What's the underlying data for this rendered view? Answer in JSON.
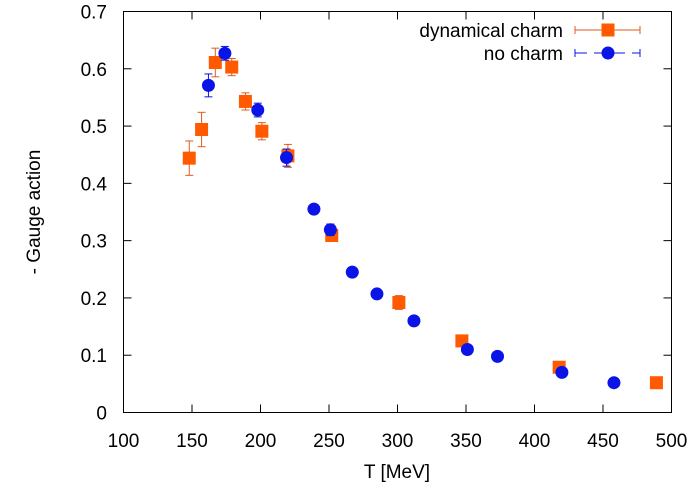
{
  "chart_data": {
    "type": "scatter",
    "xlabel": "T [MeV]",
    "ylabel": "- Gauge action",
    "xlim": [
      100,
      500
    ],
    "ylim": [
      0,
      0.7
    ],
    "xticks": [
      "100",
      "150",
      "200",
      "250",
      "300",
      "350",
      "400",
      "450",
      "500"
    ],
    "yticks": [
      "0",
      "0.1",
      "0.2",
      "0.3",
      "0.4",
      "0.5",
      "0.6",
      "0.7"
    ],
    "grid": false,
    "legend_position": "top-right",
    "series": [
      {
        "name": "dynamical charm",
        "marker": "square",
        "color": "#ff5a00",
        "errorbar_color": "#e05a1e",
        "points": [
          {
            "x": 148,
            "y": 0.444,
            "err": 0.03
          },
          {
            "x": 157,
            "y": 0.494,
            "err": 0.03
          },
          {
            "x": 167,
            "y": 0.611,
            "err": 0.025
          },
          {
            "x": 179,
            "y": 0.603,
            "err": 0.015
          },
          {
            "x": 189,
            "y": 0.543,
            "err": 0.015
          },
          {
            "x": 201,
            "y": 0.491,
            "err": 0.015
          },
          {
            "x": 220,
            "y": 0.448,
            "err": 0.02
          },
          {
            "x": 252,
            "y": 0.309,
            "err": 0.01
          },
          {
            "x": 301,
            "y": 0.192,
            "err": 0.012
          },
          {
            "x": 347,
            "y": 0.125,
            "err": 0.005
          },
          {
            "x": 418,
            "y": 0.079,
            "err": 0.004
          },
          {
            "x": 489,
            "y": 0.052,
            "err": 0.003
          }
        ]
      },
      {
        "name": "no charm",
        "marker": "circle",
        "color": "#0a14e6",
        "errorbar_color": "#0a14e6",
        "points": [
          {
            "x": 162,
            "y": 0.571,
            "err": 0.02
          },
          {
            "x": 174,
            "y": 0.627,
            "err": 0.012
          },
          {
            "x": 198,
            "y": 0.528,
            "err": 0.012
          },
          {
            "x": 219,
            "y": 0.445,
            "err": 0.015
          },
          {
            "x": 239,
            "y": 0.355,
            "err": 0.005
          },
          {
            "x": 251,
            "y": 0.319,
            "err": 0.01
          },
          {
            "x": 267,
            "y": 0.245,
            "err": 0.005
          },
          {
            "x": 285,
            "y": 0.207,
            "err": 0.005
          },
          {
            "x": 312,
            "y": 0.16,
            "err": 0.007
          },
          {
            "x": 351,
            "y": 0.11,
            "err": 0.005
          },
          {
            "x": 373,
            "y": 0.098,
            "err": 0.004
          },
          {
            "x": 420,
            "y": 0.07,
            "err": 0.004
          },
          {
            "x": 458,
            "y": 0.052,
            "err": 0.003
          }
        ]
      }
    ]
  }
}
